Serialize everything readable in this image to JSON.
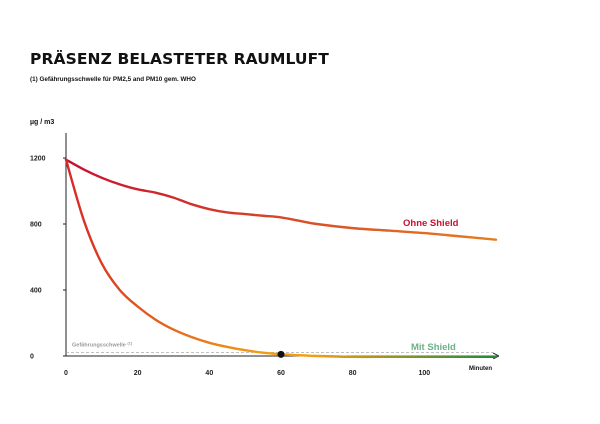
{
  "title": "PRÄSENZ BELASTETER RAUMLUFT",
  "subtitle": "(1) Gefährungsschwelle für PM2,5 and PM10 gem. WHO",
  "colors": {
    "ohne_start": "#c8102e",
    "ohne_end": "#e67e22",
    "mit_start": "#d62828",
    "mit_mid": "#f39c12",
    "mit_end": "#1e8c3a",
    "threshold": "#aaaaaa",
    "axis": "#222222",
    "mit_label": "#6ab187",
    "ohne_label": "#c8102e"
  },
  "chart_data": {
    "type": "line",
    "title": "PRÄSENZ BELASTETER RAUMLUFT",
    "xlabel": "Minuten",
    "ylabel": "µg / m3",
    "xlim": [
      0,
      120
    ],
    "ylim": [
      0,
      1300
    ],
    "x_ticks": [
      0,
      20,
      40,
      60,
      80,
      100
    ],
    "y_ticks": [
      0,
      400,
      800,
      1200
    ],
    "grid": false,
    "series": [
      {
        "name": "Ohne Shield",
        "x": [
          0,
          5,
          10,
          15,
          20,
          25,
          30,
          35,
          40,
          45,
          50,
          55,
          60,
          65,
          70,
          80,
          90,
          100,
          110,
          120
        ],
        "values": [
          1190,
          1130,
          1080,
          1040,
          1010,
          990,
          960,
          920,
          890,
          870,
          860,
          850,
          840,
          820,
          800,
          775,
          760,
          745,
          725,
          705
        ]
      },
      {
        "name": "Mit Shield",
        "x": [
          0,
          5,
          10,
          15,
          20,
          25,
          30,
          35,
          40,
          45,
          50,
          55,
          60,
          65,
          70,
          80,
          90,
          100,
          110,
          120
        ],
        "values": [
          1190,
          820,
          560,
          400,
          300,
          220,
          160,
          115,
          80,
          55,
          35,
          20,
          10,
          5,
          0,
          -5,
          -5,
          -5,
          -5,
          -5
        ]
      }
    ],
    "threshold": {
      "label": "Gefährungsschwelle",
      "superscript": "(1)",
      "value": 10
    },
    "marker": {
      "x": 60,
      "y": 10
    }
  }
}
